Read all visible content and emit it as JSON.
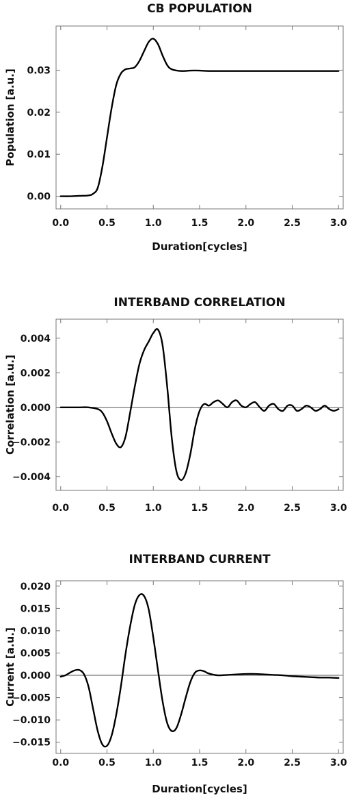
{
  "chart_data": [
    {
      "type": "line",
      "title": "CB POPULATION",
      "xlabel": "Duration[cycles]",
      "ylabel": "Population [a.u.]",
      "xlim": [
        -0.05,
        3.05
      ],
      "ylim": [
        -0.003,
        0.0405
      ],
      "xticks": [
        "0.0",
        "0.5",
        "1.0",
        "1.5",
        "2.0",
        "2.5",
        "3.0"
      ],
      "yticks": [
        "0.00",
        "0.01",
        "0.02",
        "0.03"
      ],
      "zero_line": false,
      "series": [
        {
          "x": [
            0.0,
            0.1,
            0.2,
            0.3,
            0.35,
            0.4,
            0.45,
            0.5,
            0.55,
            0.6,
            0.65,
            0.7,
            0.75,
            0.8,
            0.85,
            0.9,
            0.95,
            1.0,
            1.05,
            1.1,
            1.15,
            1.2,
            1.3,
            1.4,
            1.5,
            1.6,
            1.8,
            2.0,
            2.5,
            3.0
          ],
          "y": [
            0.0,
            0.0,
            0.0001,
            0.0002,
            0.0006,
            0.002,
            0.007,
            0.014,
            0.021,
            0.0265,
            0.0292,
            0.0302,
            0.0304,
            0.0307,
            0.0322,
            0.0345,
            0.0367,
            0.0375,
            0.0362,
            0.0335,
            0.0312,
            0.0302,
            0.0298,
            0.0299,
            0.0299,
            0.0298,
            0.0298,
            0.0298,
            0.0298,
            0.0298
          ]
        }
      ]
    },
    {
      "type": "line",
      "title": "INTERBAND CORRELATION",
      "xlabel": "",
      "ylabel": "Correlation [a.u.]",
      "xlim": [
        -0.05,
        3.05
      ],
      "ylim": [
        -0.0048,
        0.0051
      ],
      "xticks": [
        "0.0",
        "0.5",
        "1.0",
        "1.5",
        "2.0",
        "2.5",
        "3.0"
      ],
      "yticks": [
        "0.004",
        "0.002",
        "0.000",
        "−0.002",
        "−0.004"
      ],
      "zero_line": true,
      "series": [
        {
          "x": [
            0.0,
            0.1,
            0.2,
            0.3,
            0.4,
            0.45,
            0.5,
            0.55,
            0.6,
            0.65,
            0.7,
            0.75,
            0.8,
            0.85,
            0.9,
            0.95,
            1.0,
            1.05,
            1.1,
            1.15,
            1.2,
            1.25,
            1.3,
            1.35,
            1.4,
            1.45,
            1.5,
            1.55,
            1.6,
            1.65,
            1.7,
            1.75,
            1.8,
            1.85,
            1.9,
            1.95,
            2.0,
            2.05,
            2.1,
            2.15,
            2.2,
            2.25,
            2.3,
            2.35,
            2.4,
            2.45,
            2.5,
            2.55,
            2.6,
            2.65,
            2.7,
            2.75,
            2.8,
            2.85,
            2.9,
            2.95,
            3.0
          ],
          "y": [
            0.0,
            0.0,
            0.0,
            0.0,
            -0.0001,
            -0.0003,
            -0.0008,
            -0.0015,
            -0.0021,
            -0.0023,
            -0.0017,
            -0.0003,
            0.0012,
            0.0025,
            0.0033,
            0.0038,
            0.0043,
            0.0045,
            0.0036,
            0.0012,
            -0.0018,
            -0.0037,
            -0.0042,
            -0.0038,
            -0.0027,
            -0.0012,
            -0.0002,
            0.0002,
            0.0001,
            0.0003,
            0.0004,
            0.0002,
            0.0,
            0.0003,
            0.0004,
            0.0001,
            0.0,
            0.0002,
            0.0003,
            0.0,
            -0.0002,
            0.0001,
            0.0002,
            -0.0001,
            -0.0002,
            0.0001,
            0.0001,
            -0.0002,
            -0.0001,
            0.0001,
            0.0,
            -0.0002,
            -0.0001,
            0.0001,
            -0.0001,
            -0.0002,
            -0.0001
          ]
        }
      ]
    },
    {
      "type": "line",
      "title": "INTERBAND CURRENT",
      "xlabel": "Duration[cycles]",
      "ylabel": "Current [a.u.]",
      "xlim": [
        -0.05,
        3.05
      ],
      "ylim": [
        -0.0175,
        0.0212
      ],
      "xticks": [
        "0.0",
        "0.5",
        "1.0",
        "1.5",
        "2.0",
        "2.5",
        "3.0"
      ],
      "yticks": [
        "0.020",
        "0.015",
        "0.010",
        "0.005",
        "0.000",
        "−0.005",
        "−0.010",
        "−0.015"
      ],
      "zero_line": true,
      "series": [
        {
          "x": [
            0.0,
            0.05,
            0.1,
            0.15,
            0.2,
            0.25,
            0.3,
            0.35,
            0.4,
            0.45,
            0.5,
            0.55,
            0.6,
            0.65,
            0.7,
            0.75,
            0.8,
            0.85,
            0.9,
            0.95,
            1.0,
            1.05,
            1.1,
            1.15,
            1.2,
            1.25,
            1.3,
            1.35,
            1.4,
            1.45,
            1.5,
            1.55,
            1.6,
            1.7,
            1.8,
            1.9,
            2.0,
            2.1,
            2.2,
            2.3,
            2.4,
            2.5,
            2.6,
            2.7,
            2.8,
            2.9,
            3.0
          ],
          "y": [
            -0.0003,
            0.0,
            0.0006,
            0.0011,
            0.0012,
            0.0003,
            -0.0025,
            -0.0075,
            -0.0125,
            -0.0155,
            -0.0158,
            -0.0135,
            -0.0088,
            -0.0025,
            0.0048,
            0.011,
            0.0158,
            0.018,
            0.0178,
            0.0148,
            0.0085,
            0.0012,
            -0.0058,
            -0.0107,
            -0.0125,
            -0.0118,
            -0.0088,
            -0.005,
            -0.0015,
            0.0006,
            0.0011,
            0.0009,
            0.0004,
            0.0,
            0.0001,
            0.0002,
            0.0003,
            0.0003,
            0.0002,
            0.0001,
            0.0,
            -0.0002,
            -0.0003,
            -0.0004,
            -0.0005,
            -0.0005,
            -0.0006
          ]
        }
      ]
    }
  ]
}
